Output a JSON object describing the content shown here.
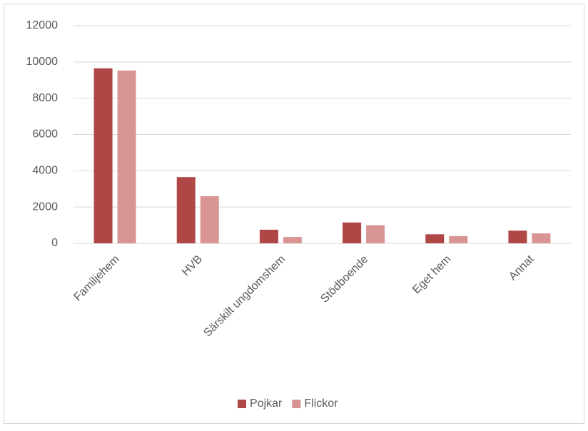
{
  "chart_data": {
    "type": "bar",
    "categories": [
      "Familjehem",
      "HVB",
      "Särskilt ungdomshem",
      "Stödboende",
      "Eget hem",
      "Annat"
    ],
    "series": [
      {
        "name": "Pojkar",
        "color": "#b04747",
        "values": [
          9650,
          3650,
          750,
          1150,
          500,
          700
        ]
      },
      {
        "name": "Flickor",
        "color": "#d99594",
        "values": [
          9530,
          2600,
          350,
          1000,
          400,
          550
        ]
      }
    ],
    "ylim": [
      0,
      12000
    ],
    "yticks": [
      0,
      2000,
      4000,
      6000,
      8000,
      10000,
      12000
    ],
    "grid": true,
    "legend": "bottom"
  }
}
